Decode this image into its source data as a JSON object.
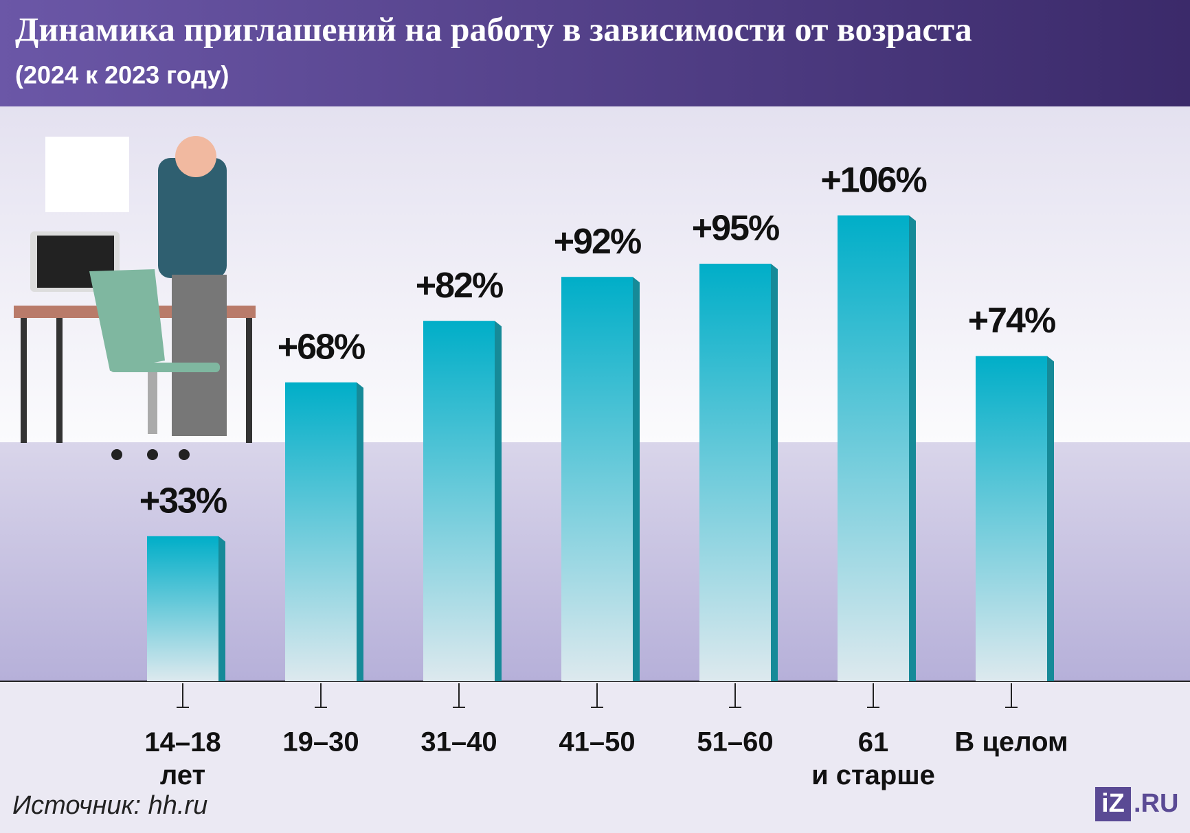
{
  "chart_data": {
    "type": "bar",
    "title": "Динамика приглашений на работу в зависимости от возраста",
    "subtitle": "(2024 к 2023 году)",
    "categories": [
      "14–18\nлет",
      "19–30",
      "31–40",
      "41–50",
      "51–60",
      "61\nи старше",
      "В целом"
    ],
    "values": [
      33,
      68,
      82,
      92,
      95,
      106,
      74
    ],
    "value_labels": [
      "+33%",
      "+68%",
      "+82%",
      "+92%",
      "+95%",
      "+106%",
      "+74%"
    ],
    "color": "#00aec8",
    "source": "Источник: hh.ru",
    "logo": {
      "box": "iZ",
      "suffix": ".RU"
    }
  }
}
